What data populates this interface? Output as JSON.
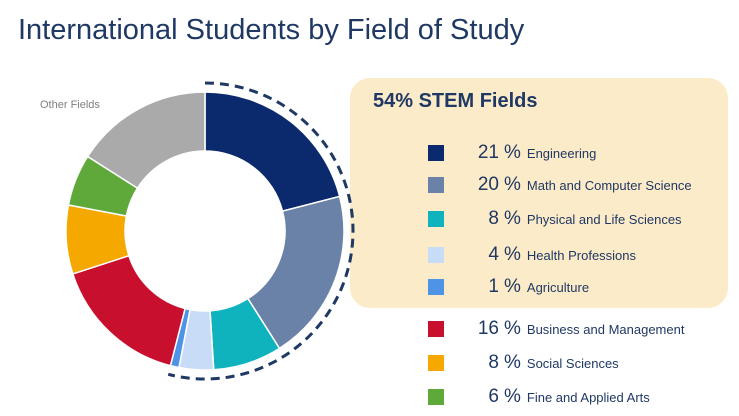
{
  "title": "International Students by Field of Study",
  "chart_data": {
    "type": "pie",
    "style": "donut",
    "title": "International Students by Field of Study",
    "start_angle_deg": 0,
    "direction": "clockwise",
    "slices": [
      {
        "label": "Engineering",
        "value": 21,
        "color": "#0b2a6e"
      },
      {
        "label": "Math and Computer Science",
        "value": 20,
        "color": "#6b82a8"
      },
      {
        "label": "Physical and Life Sciences",
        "value": 8,
        "color": "#0fb3be"
      },
      {
        "label": "Health Professions",
        "value": 4,
        "color": "#c9dcf7"
      },
      {
        "label": "Agriculture",
        "value": 1,
        "color": "#4f93e6"
      },
      {
        "label": "Business and Management",
        "value": 16,
        "color": "#c8102e"
      },
      {
        "label": "Social Sciences",
        "value": 8,
        "color": "#f5a800"
      },
      {
        "label": "Fine and Applied Arts",
        "value": 6,
        "color": "#5fa83a"
      },
      {
        "label": "Other Fields",
        "value": 16,
        "color": "#aaaaaa"
      }
    ],
    "annotations": {
      "stem_summary": "54% STEM Fields",
      "highlighted_group": [
        "Engineering",
        "Math and Computer Science",
        "Physical and Life Sciences",
        "Health Professions",
        "Agriculture"
      ],
      "highlight_style": "dashed-arc",
      "outside_label": "Other Fields"
    },
    "legend": [
      {
        "pct": "21",
        "label": "Engineering",
        "color": "#0b2a6e",
        "group": "stem"
      },
      {
        "pct": "20",
        "label": "Math and Computer Science",
        "color": "#6b82a8",
        "group": "stem"
      },
      {
        "pct": "8",
        "label": "Physical and Life Sciences",
        "color": "#0fb3be",
        "group": "stem"
      },
      {
        "pct": "4",
        "label": "Health Professions",
        "color": "#c9dcf7",
        "group": "stem"
      },
      {
        "pct": "1",
        "label": "Agriculture",
        "color": "#4f93e6",
        "group": "stem"
      },
      {
        "pct": "16",
        "label": "Business and Management",
        "color": "#c8102e",
        "group": "other"
      },
      {
        "pct": "8",
        "label": "Social Sciences",
        "color": "#f5a800",
        "group": "other"
      },
      {
        "pct": "6",
        "label": "Fine and Applied Arts",
        "color": "#5fa83a",
        "group": "other"
      }
    ],
    "percent_sign": "%"
  }
}
